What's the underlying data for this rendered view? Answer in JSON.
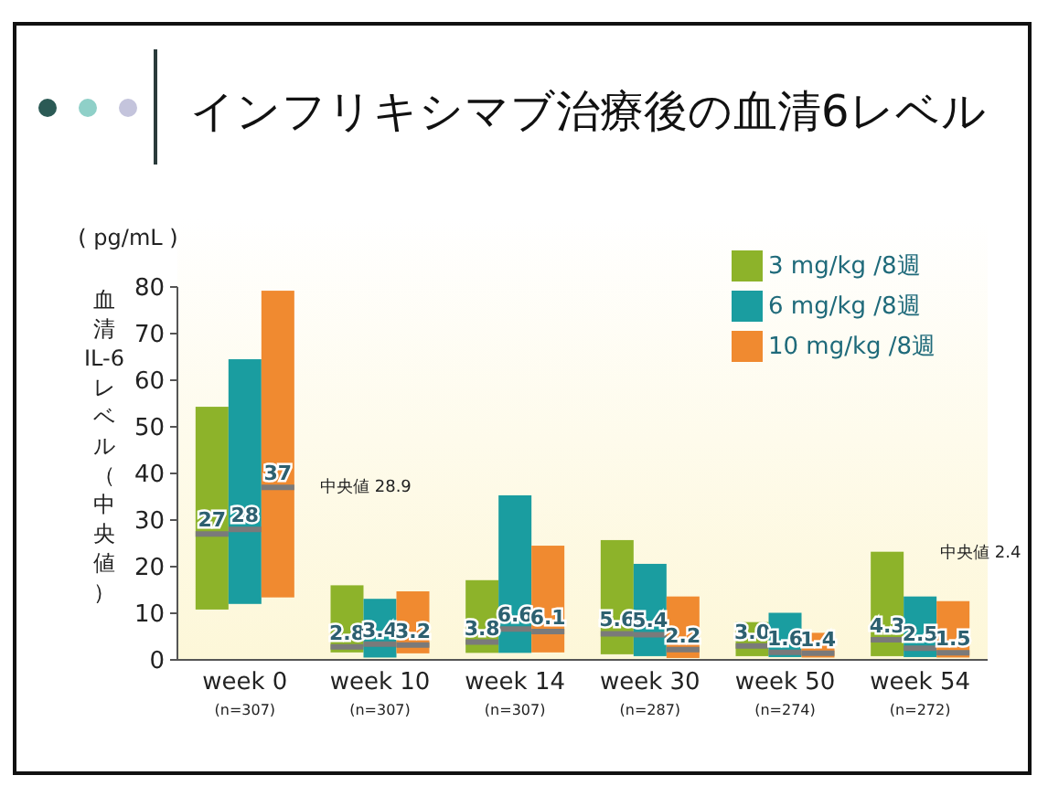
{
  "chart_data": {
    "type": "box",
    "title": "インフリキシマブ治療後の血清6レベル",
    "ylabel": "血清IL-6レベル（中央値）",
    "categories": [
      "week 0\n(n=307)",
      "week 10\n(n=307)",
      "week 14\n(n=307)",
      "week 30\n(n=287)",
      "week 50\n(n=274)",
      "week 54\n(n=272)"
    ],
    "series": [
      {
        "name": "3 mg/kg /8週",
        "color": "#8db32a",
        "boxes": [
          {
            "low": 10.8,
            "q1": 10.8,
            "median": 27,
            "q3": 54.3,
            "high": 54.3
          },
          {
            "low": 1.6,
            "q1": 1.6,
            "median": 2.8,
            "q3": 16,
            "high": 16
          },
          {
            "low": 1.5,
            "q1": 1.5,
            "median": 3.8,
            "q3": 17.1,
            "high": 17.1
          },
          {
            "low": 1.2,
            "q1": 1.2,
            "median": 5.6,
            "q3": 25.7,
            "high": 25.7
          },
          {
            "low": 0.8,
            "q1": 0.8,
            "median": 3.0,
            "q3": 8.1,
            "high": 8.1
          },
          {
            "low": 0.8,
            "q1": 0.8,
            "median": 4.3,
            "q3": 23.2,
            "high": 23.2
          }
        ],
        "value_labels": [
          "27",
          "2.8",
          "3.8",
          "5.6",
          "3.0",
          "4.3"
        ]
      },
      {
        "name": "6 mg/kg /8週",
        "color": "#1a9da0",
        "boxes": [
          {
            "low": 12,
            "q1": 12,
            "median": 28,
            "q3": 64.5,
            "high": 64.5
          },
          {
            "low": 0.5,
            "q1": 0.5,
            "median": 3.4,
            "q3": 13.1,
            "high": 13.1
          },
          {
            "low": 1.5,
            "q1": 1.5,
            "median": 6.6,
            "q3": 35.3,
            "high": 35.3
          },
          {
            "low": 0.8,
            "q1": 0.8,
            "median": 5.4,
            "q3": 20.6,
            "high": 20.6
          },
          {
            "low": 0.6,
            "q1": 0.6,
            "median": 1.6,
            "q3": 10.1,
            "high": 10.1
          },
          {
            "low": 0.6,
            "q1": 0.6,
            "median": 2.5,
            "q3": 13.6,
            "high": 13.6
          }
        ],
        "value_labels": [
          "28",
          "3.4",
          "6.6",
          "5.4",
          "1.6",
          "2.5"
        ]
      },
      {
        "name": "10 mg/kg /8週",
        "color": "#f08a30",
        "boxes": [
          {
            "low": 13.4,
            "q1": 13.4,
            "median": 37,
            "q3": 79.2,
            "high": 79.2
          },
          {
            "low": 1.4,
            "q1": 1.4,
            "median": 3.2,
            "q3": 14.7,
            "high": 14.7
          },
          {
            "low": 1.6,
            "q1": 1.6,
            "median": 6.1,
            "q3": 24.5,
            "high": 24.5
          },
          {
            "low": 0.4,
            "q1": 0.4,
            "median": 2.2,
            "q3": 13.6,
            "high": 13.6
          },
          {
            "low": 0.5,
            "q1": 0.5,
            "median": 1.4,
            "q3": 5.8,
            "high": 5.8
          },
          {
            "low": 0.5,
            "q1": 0.5,
            "median": 1.5,
            "q3": 12.6,
            "high": 12.6
          }
        ],
        "value_labels": [
          "37",
          "3.2",
          "6.1",
          "2.2",
          "1.4",
          "1.5"
        ]
      }
    ],
    "ylim": [
      0,
      80
    ],
    "yticks": [
      0,
      10,
      20,
      30,
      40,
      50,
      60,
      70,
      80
    ],
    "grid": false,
    "legend": "top right",
    "annotations": [
      "( pg/mL )",
      "中央値 28.9",
      "中央値 2.4"
    ]
  }
}
